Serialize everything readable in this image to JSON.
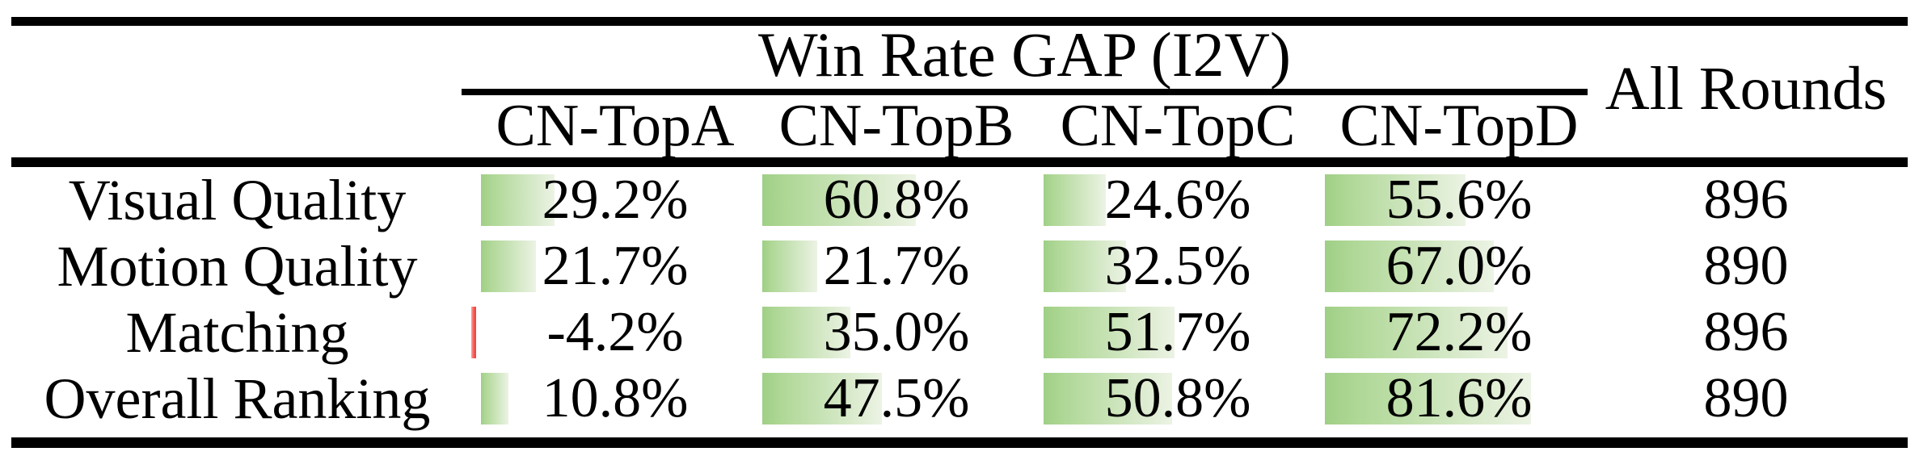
{
  "title_row": {
    "group_header": "Win Rate GAP (I2V)",
    "all_rounds_header": "All Rounds"
  },
  "columns": [
    "CN-TopA",
    "CN-TopB",
    "CN-TopC",
    "CN-TopD"
  ],
  "rows": [
    {
      "label": "Visual Quality",
      "values": [
        29.2,
        60.8,
        24.6,
        55.6
      ],
      "display": [
        "29.2%",
        "60.8%",
        "24.6%",
        "55.6%"
      ],
      "all_rounds": "896"
    },
    {
      "label": "Motion Quality",
      "values": [
        21.7,
        21.7,
        32.5,
        67.0
      ],
      "display": [
        "21.7%",
        "21.7%",
        "32.5%",
        "67.0%"
      ],
      "all_rounds": "890"
    },
    {
      "label": "Matching",
      "values": [
        -4.2,
        35.0,
        51.7,
        72.2
      ],
      "display": [
        "-4.2%",
        "35.0%",
        "51.7%",
        "72.2%"
      ],
      "all_rounds": "896"
    },
    {
      "label": "Overall Ranking",
      "values": [
        10.8,
        47.5,
        50.8,
        81.6
      ],
      "display": [
        "10.8%",
        "47.5%",
        "50.8%",
        "81.6%"
      ],
      "all_rounds": "890"
    }
  ],
  "colors": {
    "bar_positive_start": "#9fcf86",
    "bar_positive_end": "#ecf3e4",
    "bar_negative": "#f4534f",
    "rule": "#000000",
    "text": "#000000"
  },
  "chart_data": {
    "type": "table",
    "title": "Win Rate GAP (I2V)",
    "categories": [
      "Visual Quality",
      "Motion Quality",
      "Matching",
      "Overall Ranking"
    ],
    "series": [
      {
        "name": "CN-TopA",
        "values": [
          29.2,
          21.7,
          -4.2,
          10.8
        ]
      },
      {
        "name": "CN-TopB",
        "values": [
          60.8,
          21.7,
          35.0,
          47.5
        ]
      },
      {
        "name": "CN-TopC",
        "values": [
          24.6,
          32.5,
          51.7,
          50.8
        ]
      },
      {
        "name": "CN-TopD",
        "values": [
          55.6,
          67.0,
          72.2,
          81.6
        ]
      },
      {
        "name": "All Rounds",
        "values": [
          896,
          890,
          896,
          890
        ]
      }
    ],
    "unit": "%",
    "layout_hints": "in-cell horizontal data bars, left-anchored, green gradient for positive, thin red bar for negative, bar width = value% of ~full cell width"
  }
}
